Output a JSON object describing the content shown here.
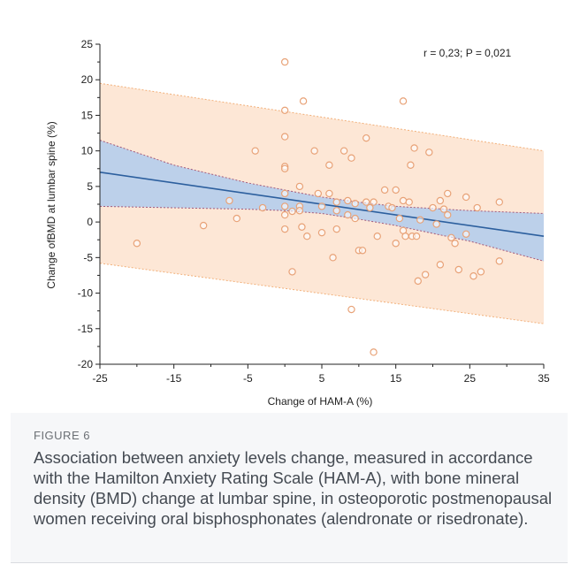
{
  "figure": {
    "label": "FIGURE 6",
    "caption": "Association between anxiety levels change, measured in accordance with the Hamilton Anxiety Rating Scale (HAM-A), with bone mineral density (BMD) change at lumbar spine, in osteoporotic postmenopausal women receiving oral bisphosphonates (alendronate or risedronate)."
  },
  "colors": {
    "point": "#e8a277",
    "regression": "#2c5f9e",
    "ci_fill": "#bcd0ea",
    "pi_fill": "#fde7d6",
    "ci_border": "#a45a7a",
    "pi_border": "#f2b07a"
  },
  "chart_data": {
    "type": "scatter",
    "title": "",
    "annotation": "r = 0,23; P = 0,021",
    "xlabel": "Change of HAM-A (%)",
    "ylabel": "Change ofBMD at lumbar spine (%)",
    "xlim": [
      -25,
      35
    ],
    "ylim": [
      -20,
      25
    ],
    "xticks": [
      "-25",
      "-15",
      "-5",
      "5",
      "15",
      "25",
      "35"
    ],
    "yticks": [
      "25",
      "20",
      "15",
      "10",
      "5",
      "0",
      "-5",
      "-10",
      "-15",
      "-20"
    ],
    "grid": false,
    "regression_line": {
      "x": [
        -25,
        35
      ],
      "y": [
        7.0,
        -2.0
      ]
    },
    "confidence_band": {
      "x": [
        -25,
        -15,
        -5,
        0,
        5,
        10,
        15,
        25,
        35
      ],
      "upper": [
        11.5,
        8.0,
        5.5,
        4.5,
        3.5,
        2.8,
        2.2,
        1.6,
        1.2
      ],
      "lower": [
        2.2,
        2.0,
        1.8,
        1.6,
        1.2,
        0.4,
        -0.5,
        -2.7,
        -5.5
      ]
    },
    "prediction_band": {
      "x": [
        -25,
        35
      ],
      "upper": [
        19.5,
        10.0
      ],
      "lower": [
        -5.8,
        -14.3
      ]
    },
    "points": [
      [
        -20,
        -3
      ],
      [
        -11,
        -0.5
      ],
      [
        -7.5,
        3
      ],
      [
        -6.5,
        0.5
      ],
      [
        -4,
        10
      ],
      [
        -3,
        2
      ],
      [
        0,
        22.5
      ],
      [
        0,
        15.7
      ],
      [
        0,
        12
      ],
      [
        0,
        7.8
      ],
      [
        0,
        7.5
      ],
      [
        0,
        4
      ],
      [
        0,
        2.2
      ],
      [
        0,
        1
      ],
      [
        0,
        -1
      ],
      [
        1,
        1.5
      ],
      [
        1,
        -7
      ],
      [
        2,
        5
      ],
      [
        2,
        2.2
      ],
      [
        2,
        1.6
      ],
      [
        2.5,
        17
      ],
      [
        2.3,
        -0.7
      ],
      [
        3,
        -2
      ],
      [
        4,
        10
      ],
      [
        4.5,
        4
      ],
      [
        5,
        2.2
      ],
      [
        5,
        -1.5
      ],
      [
        6,
        8
      ],
      [
        6,
        4
      ],
      [
        6.5,
        -5
      ],
      [
        7,
        2.8
      ],
      [
        7,
        1.6
      ],
      [
        7,
        -1
      ],
      [
        8,
        10
      ],
      [
        8.5,
        3
      ],
      [
        8.5,
        1
      ],
      [
        9,
        9
      ],
      [
        9,
        -12.3
      ],
      [
        9.5,
        2.6
      ],
      [
        9.5,
        0.5
      ],
      [
        10,
        -4
      ],
      [
        10.5,
        -4
      ],
      [
        11,
        11.8
      ],
      [
        11,
        2.8
      ],
      [
        11.5,
        2
      ],
      [
        12,
        2.8
      ],
      [
        12.5,
        -2
      ],
      [
        12,
        -18.3
      ],
      [
        13.5,
        4.5
      ],
      [
        14,
        2.2
      ],
      [
        14.5,
        2
      ],
      [
        15,
        4.5
      ],
      [
        15,
        -3
      ],
      [
        15.5,
        0.5
      ],
      [
        16,
        17
      ],
      [
        16,
        3
      ],
      [
        16,
        -1.2
      ],
      [
        16.3,
        -2
      ],
      [
        16.8,
        2.8
      ],
      [
        17,
        8
      ],
      [
        17.2,
        -2
      ],
      [
        17.5,
        10.4
      ],
      [
        17.8,
        -2
      ],
      [
        18,
        -8.3
      ],
      [
        18.3,
        0.3
      ],
      [
        19,
        -7.4
      ],
      [
        19.5,
        9.8
      ],
      [
        20,
        2
      ],
      [
        20.5,
        -0.3
      ],
      [
        21,
        3
      ],
      [
        21,
        -6
      ],
      [
        21.5,
        1.8
      ],
      [
        22,
        4
      ],
      [
        22,
        1
      ],
      [
        22.5,
        -2.2
      ],
      [
        23,
        -3
      ],
      [
        23.5,
        -6.7
      ],
      [
        24.5,
        3.5
      ],
      [
        24.5,
        -1.7
      ],
      [
        25.5,
        -7.6
      ],
      [
        26.5,
        -7
      ],
      [
        26,
        2
      ],
      [
        29,
        -5.5
      ],
      [
        29,
        2.8
      ]
    ]
  }
}
